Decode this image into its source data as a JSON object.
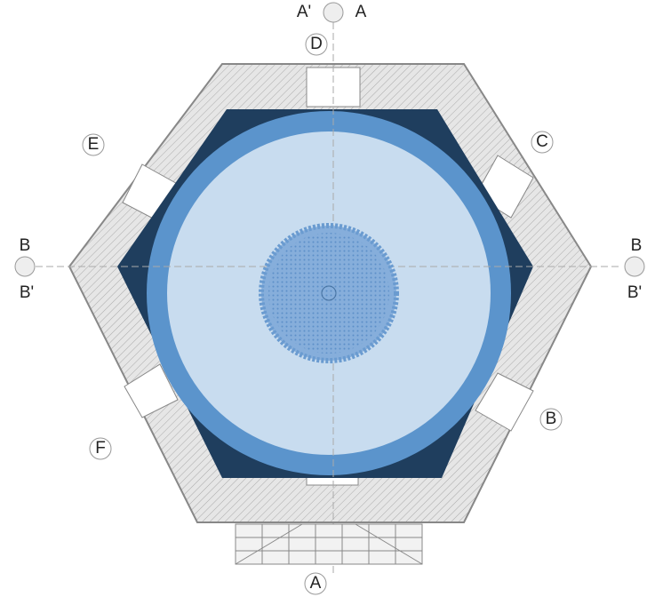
{
  "labels": {
    "top_left": "A'",
    "top_right": "A",
    "top": "D",
    "upper_right": "C",
    "upper_left": "E",
    "left_top": "B",
    "left_bottom": "B'",
    "right_top": "B",
    "right_bottom": "B'",
    "lower_right": "B",
    "lower_left": "F",
    "bottom": "A"
  }
}
